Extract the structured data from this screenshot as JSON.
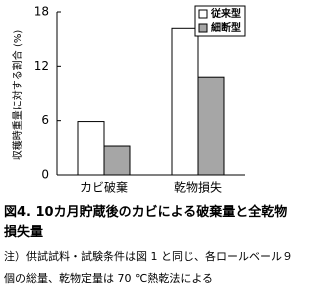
{
  "chart_data": {
    "type": "bar",
    "y_label": "収穫時重量に対する割合 (%)",
    "categories": [
      "カビ破棄",
      "乾物損失"
    ],
    "series": [
      {
        "name": "従来型",
        "color": "#ffffff",
        "values": [
          5.9,
          16.2
        ]
      },
      {
        "name": "細断型",
        "color": "#a6a6a6",
        "values": [
          3.2,
          10.8
        ]
      }
    ],
    "ylim": [
      0,
      18
    ],
    "yticks": [
      0,
      6,
      12,
      18
    ],
    "legend": "upper right"
  },
  "caption": "図4. 10カ月貯蔵後のカビによる破棄量と全乾物損失量",
  "note": "注）供試試料・試験条件は図 1 と同じ、各ロールベール９個の総量、乾物定量は 70 ℃熱乾法による"
}
